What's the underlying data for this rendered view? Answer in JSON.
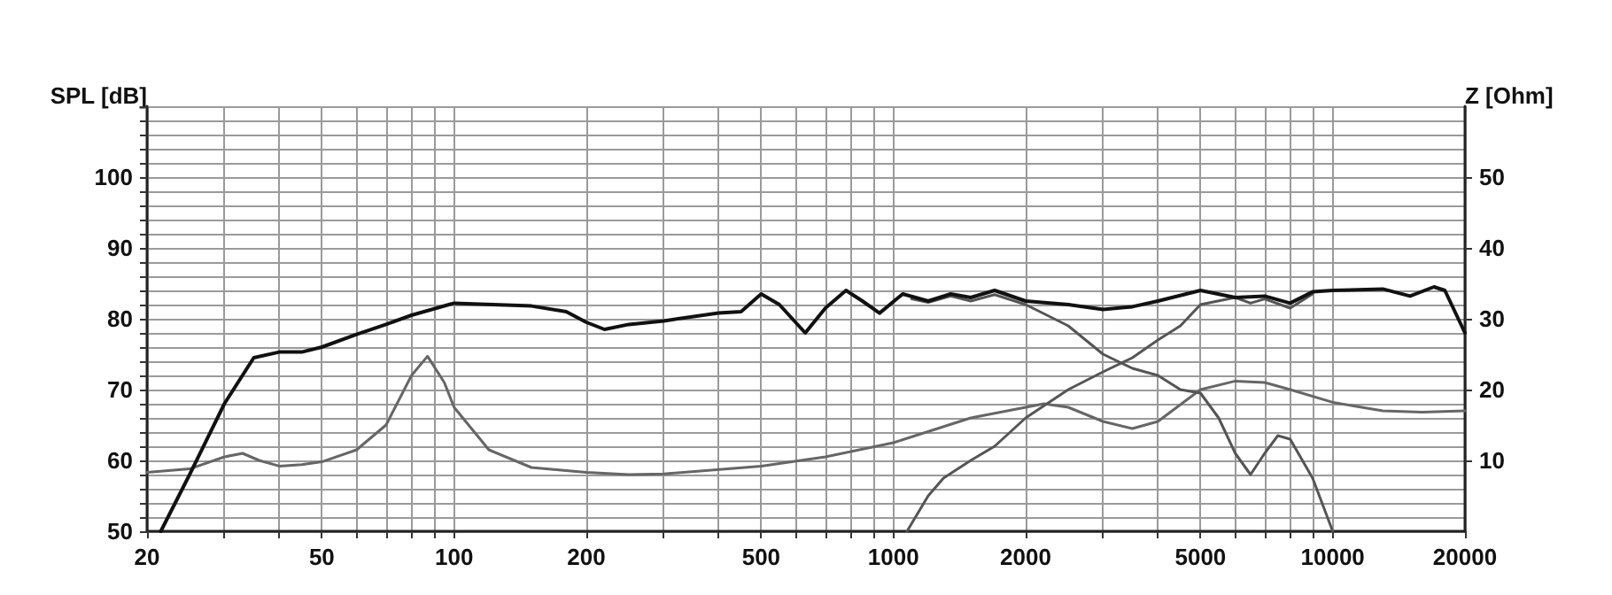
{
  "chart_data": {
    "type": "line",
    "ylabel": "SPL [dB]",
    "y2label": "Z [Ohm]",
    "log": "x",
    "grid": true,
    "marker": "none",
    "line_style": "solid",
    "xlim": [
      20,
      20000
    ],
    "ylim": [
      50,
      110
    ],
    "y2lim": [
      0,
      60
    ],
    "xticks": [
      20,
      {
        "value": 30,
        "label": null
      },
      {
        "value": 40,
        "label": null
      },
      50,
      {
        "value": 60,
        "label": null
      },
      {
        "value": 70,
        "label": null
      },
      {
        "value": 80,
        "label": null
      },
      {
        "value": 90,
        "label": null
      },
      100,
      200,
      {
        "value": 300,
        "label": null
      },
      {
        "value": 400,
        "label": null
      },
      500,
      {
        "value": 600,
        "label": null
      },
      {
        "value": 700,
        "label": null
      },
      {
        "value": 800,
        "label": null
      },
      {
        "value": 900,
        "label": null
      },
      1000,
      2000,
      {
        "value": 3000,
        "label": null
      },
      {
        "value": 4000,
        "label": null
      },
      5000,
      {
        "value": 6000,
        "label": null
      },
      {
        "value": 7000,
        "label": null
      },
      {
        "value": 8000,
        "label": null
      },
      {
        "value": 9000,
        "label": null
      },
      10000,
      20000
    ],
    "yticks": [
      50,
      {
        "value": 52,
        "label": null
      },
      {
        "value": 54,
        "label": null
      },
      {
        "value": 56,
        "label": null
      },
      {
        "value": 58,
        "label": null
      },
      60,
      {
        "value": 62,
        "label": null
      },
      {
        "value": 64,
        "label": null
      },
      {
        "value": 66,
        "label": null
      },
      {
        "value": 68,
        "label": null
      },
      70,
      {
        "value": 72,
        "label": null
      },
      {
        "value": 74,
        "label": null
      },
      {
        "value": 76,
        "label": null
      },
      {
        "value": 78,
        "label": null
      },
      80,
      {
        "value": 82,
        "label": null
      },
      {
        "value": 84,
        "label": null
      },
      {
        "value": 86,
        "label": null
      },
      {
        "value": 88,
        "label": null
      },
      90,
      {
        "value": 92,
        "label": null
      },
      {
        "value": 94,
        "label": null
      },
      {
        "value": 96,
        "label": null
      },
      {
        "value": 98,
        "label": null
      },
      100,
      {
        "value": 102,
        "label": null
      },
      {
        "value": 104,
        "label": null
      },
      {
        "value": 106,
        "label": null
      },
      {
        "value": 108,
        "label": null
      },
      {
        "value": 110,
        "label": null
      }
    ],
    "y2ticks": [
      10,
      20,
      30,
      40,
      50
    ],
    "series": [
      {
        "color": "#111111",
        "x": [
          21.5,
          25,
          30,
          35,
          40,
          45,
          50,
          60,
          70,
          80,
          100,
          150,
          180,
          200,
          220,
          250,
          300,
          400,
          450,
          500,
          550,
          630,
          700,
          780,
          850,
          930,
          1050,
          1200,
          1350,
          1500,
          1700,
          2000,
          2500,
          3000,
          3500,
          4000,
          5000,
          6000,
          7000,
          8000,
          9000,
          10000,
          13000,
          15000,
          17000,
          18000,
          20000
        ],
        "values": [
          50,
          58,
          68,
          74.5,
          75.3,
          75.3,
          76,
          77.8,
          79.2,
          80.5,
          82.2,
          81.8,
          81,
          79.5,
          78.5,
          79.2,
          79.7,
          80.8,
          81,
          83.5,
          82,
          78,
          81.5,
          84,
          82.5,
          80.8,
          83.5,
          82.5,
          83.5,
          83,
          84,
          82.5,
          82,
          81.3,
          81.7,
          82.5,
          84,
          83,
          83.2,
          82.2,
          83.8,
          84,
          84.2,
          83.2,
          84.5,
          84,
          78
        ]
      },
      {
        "color": "#555555",
        "x": [
          1100,
          1200,
          1350,
          1500,
          1700,
          2000,
          2500,
          3000,
          3500,
          4000,
          4500,
          5000,
          5500,
          6000,
          6500,
          7000,
          7500,
          8000,
          9000,
          10000
        ],
        "values": [
          82.8,
          82.3,
          83.2,
          82.5,
          83.4,
          82,
          79,
          75,
          73,
          72,
          70,
          69.5,
          66,
          61,
          58,
          61,
          63.5,
          63,
          57.5,
          50
        ]
      },
      {
        "color": "#555555",
        "x": [
          1074,
          1200,
          1300,
          1500,
          1700,
          2000,
          2500,
          3000,
          3500,
          4000,
          4500,
          5000,
          6000,
          6500,
          7000,
          8000,
          9000
        ],
        "values": [
          50,
          55,
          57.5,
          60,
          62,
          66,
          70,
          72.5,
          74.5,
          77,
          79,
          82,
          83,
          82.2,
          82.8,
          81.5,
          83.5
        ]
      },
      {
        "color": "#666666",
        "axis": "y2",
        "x": [
          20,
          25,
          30,
          33,
          36,
          40,
          45,
          50,
          60,
          70,
          80,
          87,
          95,
          100,
          120,
          150,
          200,
          250,
          300,
          500,
          700,
          1000,
          1500,
          2000,
          2200,
          2500,
          3000,
          3500,
          4000,
          5000,
          6000,
          7000,
          8000,
          10000,
          13000,
          16000,
          20000
        ],
        "values": [
          8.3,
          8.8,
          10.5,
          11,
          10,
          9.2,
          9.4,
          9.8,
          11.5,
          15,
          22,
          24.7,
          21,
          17.5,
          11.5,
          9,
          8.3,
          8,
          8.1,
          9.2,
          10.5,
          12.5,
          16,
          17.5,
          18,
          17.5,
          15.5,
          14.5,
          15.5,
          20,
          21.2,
          21,
          20,
          18.2,
          17,
          16.8,
          17
        ]
      }
    ]
  }
}
